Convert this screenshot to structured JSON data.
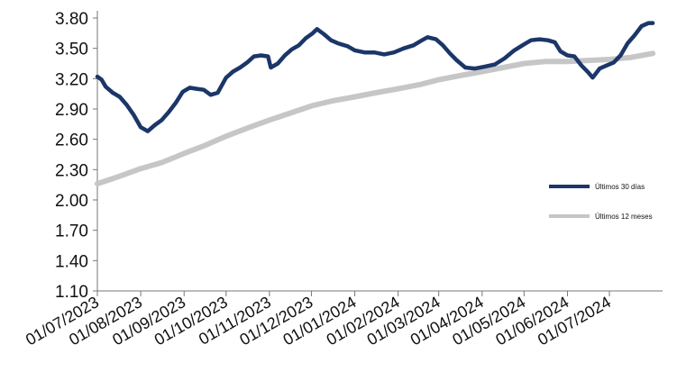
{
  "chart_data": {
    "type": "line",
    "title": "",
    "xlabel": "",
    "ylabel": "",
    "ylim": [
      1.1,
      3.8
    ],
    "yticks": [
      "1.10",
      "1.40",
      "1.70",
      "2.00",
      "2.30",
      "2.60",
      "2.90",
      "3.20",
      "3.50",
      "3.80"
    ],
    "xticks": [
      "01/07/2023",
      "01/08/2023",
      "01/09/2023",
      "01/10/2023",
      "01/11/2023",
      "01/12/2023",
      "01/01/2024",
      "01/02/2024",
      "01/03/2024",
      "01/04/2024",
      "01/05/2024",
      "01/06/2024",
      "01/07/2024"
    ],
    "xlim": [
      "2023-07-01",
      "2024-08-08"
    ],
    "grid": false,
    "legend_position": "right",
    "series": [
      {
        "name": "Últimos 30 días",
        "color": "#1b3668",
        "points": [
          [
            "2023-07-01",
            3.22
          ],
          [
            "2023-07-04",
            3.19
          ],
          [
            "2023-07-07",
            3.12
          ],
          [
            "2023-07-12",
            3.06
          ],
          [
            "2023-07-17",
            3.02
          ],
          [
            "2023-07-22",
            2.94
          ],
          [
            "2023-07-27",
            2.84
          ],
          [
            "2023-08-01",
            2.72
          ],
          [
            "2023-08-06",
            2.68
          ],
          [
            "2023-08-11",
            2.74
          ],
          [
            "2023-08-16",
            2.79
          ],
          [
            "2023-08-21",
            2.87
          ],
          [
            "2023-08-26",
            2.96
          ],
          [
            "2023-08-31",
            3.07
          ],
          [
            "2023-09-05",
            3.11
          ],
          [
            "2023-09-10",
            3.1
          ],
          [
            "2023-09-15",
            3.09
          ],
          [
            "2023-09-20",
            3.04
          ],
          [
            "2023-09-25",
            3.06
          ],
          [
            "2023-10-01",
            3.21
          ],
          [
            "2023-10-06",
            3.27
          ],
          [
            "2023-10-11",
            3.31
          ],
          [
            "2023-10-16",
            3.36
          ],
          [
            "2023-10-21",
            3.42
          ],
          [
            "2023-10-26",
            3.43
          ],
          [
            "2023-10-31",
            3.42
          ],
          [
            "2023-11-02",
            3.31
          ],
          [
            "2023-11-07",
            3.35
          ],
          [
            "2023-11-12",
            3.43
          ],
          [
            "2023-11-17",
            3.49
          ],
          [
            "2023-11-22",
            3.53
          ],
          [
            "2023-11-27",
            3.6
          ],
          [
            "2023-12-02",
            3.65
          ],
          [
            "2023-12-05",
            3.69
          ],
          [
            "2023-12-10",
            3.64
          ],
          [
            "2023-12-15",
            3.58
          ],
          [
            "2023-12-20",
            3.55
          ],
          [
            "2023-12-27",
            3.52
          ],
          [
            "2024-01-01",
            3.48
          ],
          [
            "2024-01-08",
            3.46
          ],
          [
            "2024-01-15",
            3.46
          ],
          [
            "2024-01-22",
            3.44
          ],
          [
            "2024-01-29",
            3.46
          ],
          [
            "2024-02-05",
            3.5
          ],
          [
            "2024-02-12",
            3.53
          ],
          [
            "2024-02-18",
            3.58
          ],
          [
            "2024-02-22",
            3.61
          ],
          [
            "2024-02-28",
            3.59
          ],
          [
            "2024-03-04",
            3.53
          ],
          [
            "2024-03-09",
            3.45
          ],
          [
            "2024-03-14",
            3.38
          ],
          [
            "2024-03-20",
            3.31
          ],
          [
            "2024-03-27",
            3.3
          ],
          [
            "2024-04-03",
            3.32
          ],
          [
            "2024-04-10",
            3.34
          ],
          [
            "2024-04-17",
            3.4
          ],
          [
            "2024-04-24",
            3.48
          ],
          [
            "2024-05-01",
            3.54
          ],
          [
            "2024-05-06",
            3.58
          ],
          [
            "2024-05-12",
            3.59
          ],
          [
            "2024-05-18",
            3.58
          ],
          [
            "2024-05-23",
            3.56
          ],
          [
            "2024-05-27",
            3.47
          ],
          [
            "2024-06-01",
            3.43
          ],
          [
            "2024-06-06",
            3.42
          ],
          [
            "2024-06-11",
            3.33
          ],
          [
            "2024-06-16",
            3.26
          ],
          [
            "2024-06-19",
            3.21
          ],
          [
            "2024-06-24",
            3.3
          ],
          [
            "2024-06-29",
            3.33
          ],
          [
            "2024-07-04",
            3.36
          ],
          [
            "2024-07-09",
            3.43
          ],
          [
            "2024-07-14",
            3.55
          ],
          [
            "2024-07-19",
            3.63
          ],
          [
            "2024-07-24",
            3.72
          ],
          [
            "2024-07-29",
            3.75
          ],
          [
            "2024-08-01",
            3.75
          ]
        ]
      },
      {
        "name": "Últimos 12 meses",
        "color": "#c6c6c6",
        "points": [
          [
            "2023-07-01",
            2.16
          ],
          [
            "2023-07-16",
            2.23
          ],
          [
            "2023-08-01",
            2.31
          ],
          [
            "2023-08-16",
            2.37
          ],
          [
            "2023-09-01",
            2.46
          ],
          [
            "2023-09-16",
            2.54
          ],
          [
            "2023-10-01",
            2.63
          ],
          [
            "2023-10-16",
            2.71
          ],
          [
            "2023-11-01",
            2.79
          ],
          [
            "2023-11-16",
            2.86
          ],
          [
            "2023-12-01",
            2.93
          ],
          [
            "2023-12-16",
            2.98
          ],
          [
            "2024-01-01",
            3.02
          ],
          [
            "2024-01-16",
            3.06
          ],
          [
            "2024-02-01",
            3.1
          ],
          [
            "2024-02-16",
            3.14
          ],
          [
            "2024-03-01",
            3.19
          ],
          [
            "2024-03-16",
            3.23
          ],
          [
            "2024-04-01",
            3.27
          ],
          [
            "2024-04-16",
            3.31
          ],
          [
            "2024-05-01",
            3.35
          ],
          [
            "2024-05-16",
            3.37
          ],
          [
            "2024-06-01",
            3.37
          ],
          [
            "2024-06-16",
            3.38
          ],
          [
            "2024-07-01",
            3.39
          ],
          [
            "2024-07-16",
            3.41
          ],
          [
            "2024-08-01",
            3.45
          ]
        ]
      }
    ]
  }
}
